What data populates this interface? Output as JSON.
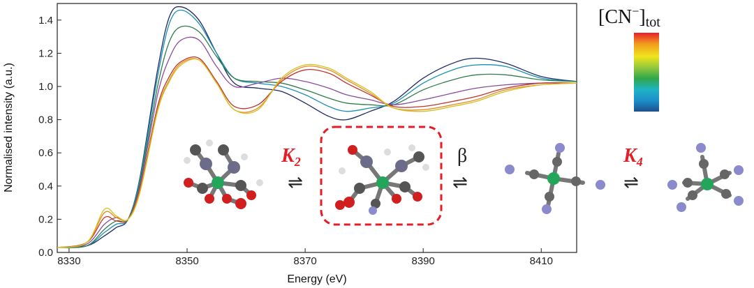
{
  "chart_data": {
    "type": "line",
    "title": "",
    "xlabel": "Energy (eV)",
    "ylabel": "Normalised intensity (a.u.)",
    "xlim": [
      8328,
      8416
    ],
    "ylim": [
      0.0,
      1.5
    ],
    "xticks": [
      8330,
      8350,
      8370,
      8390,
      8410
    ],
    "yticks": [
      0.0,
      0.2,
      0.4,
      0.6,
      0.8,
      1.0,
      1.2,
      1.4
    ],
    "xtick_labels": [
      "8330",
      "8350",
      "8370",
      "8390",
      "8410"
    ],
    "ytick_labels": [
      "0.0",
      "0.2",
      "0.4",
      "0.6",
      "0.8",
      "1.0",
      "1.2",
      "1.4"
    ],
    "grid": false,
    "colorbar": {
      "label_main": "[CN",
      "label_sup": "−",
      "label_close": "]",
      "label_sub": "tot",
      "colors": [
        "#e8202a",
        "#f39a1e",
        "#f0e51c",
        "#8cc63e",
        "#2fa84a",
        "#1fb3c4",
        "#1b8fc9",
        "#1f4f8c"
      ]
    },
    "series": [
      {
        "color": "#1f2a66",
        "x": [
          8328,
          8333,
          8336,
          8338,
          8340,
          8342,
          8345,
          8347,
          8349,
          8352,
          8355,
          8358,
          8362,
          8366,
          8370,
          8374,
          8377,
          8381,
          8385,
          8390,
          8395,
          8399,
          8404,
          8410,
          8416
        ],
        "y": [
          0.03,
          0.04,
          0.1,
          0.15,
          0.2,
          0.45,
          1.1,
          1.42,
          1.48,
          1.4,
          1.2,
          1.02,
          0.99,
          0.97,
          0.9,
          0.82,
          0.8,
          0.85,
          0.91,
          1.05,
          1.14,
          1.17,
          1.14,
          1.06,
          1.03
        ]
      },
      {
        "color": "#1a8fb5",
        "x": [
          8328,
          8333,
          8336,
          8338,
          8340,
          8342,
          8345,
          8347,
          8349,
          8352,
          8355,
          8358,
          8362,
          8366,
          8370,
          8374,
          8377,
          8381,
          8385,
          8390,
          8395,
          8399,
          8404,
          8410,
          8416
        ],
        "y": [
          0.03,
          0.04,
          0.12,
          0.17,
          0.2,
          0.44,
          1.06,
          1.38,
          1.46,
          1.38,
          1.2,
          1.05,
          1.02,
          1.0,
          0.95,
          0.88,
          0.85,
          0.87,
          0.9,
          1.02,
          1.1,
          1.13,
          1.12,
          1.05,
          1.03
        ]
      },
      {
        "color": "#2e7d4a",
        "x": [
          8328,
          8333,
          8336,
          8338,
          8340,
          8342,
          8345,
          8347,
          8349,
          8352,
          8355,
          8358,
          8362,
          8366,
          8370,
          8374,
          8377,
          8381,
          8385,
          8390,
          8395,
          8399,
          8404,
          8410,
          8416
        ],
        "y": [
          0.03,
          0.04,
          0.14,
          0.19,
          0.2,
          0.42,
          1.0,
          1.27,
          1.36,
          1.33,
          1.18,
          1.05,
          1.03,
          1.02,
          0.98,
          0.93,
          0.9,
          0.89,
          0.89,
          0.98,
          1.04,
          1.07,
          1.07,
          1.04,
          1.03
        ]
      },
      {
        "color": "#8a4a9c",
        "x": [
          8328,
          8333,
          8336,
          8338,
          8340,
          8342,
          8345,
          8347,
          8349,
          8352,
          8355,
          8358,
          8362,
          8366,
          8370,
          8374,
          8377,
          8381,
          8385,
          8390,
          8395,
          8399,
          8404,
          8410,
          8416
        ],
        "y": [
          0.03,
          0.05,
          0.17,
          0.21,
          0.2,
          0.4,
          0.95,
          1.17,
          1.28,
          1.28,
          1.12,
          1.0,
          1.02,
          1.05,
          1.03,
          0.99,
          0.95,
          0.92,
          0.89,
          0.92,
          0.96,
          0.99,
          1.01,
          1.02,
          1.02
        ]
      },
      {
        "color": "#c0342a",
        "x": [
          8328,
          8333,
          8336,
          8338,
          8340,
          8342,
          8345,
          8347,
          8349,
          8352,
          8355,
          8358,
          8362,
          8366,
          8370,
          8374,
          8377,
          8381,
          8385,
          8390,
          8395,
          8399,
          8404,
          8410,
          8416
        ],
        "y": [
          0.03,
          0.06,
          0.21,
          0.19,
          0.2,
          0.38,
          0.88,
          1.06,
          1.15,
          1.17,
          1.03,
          0.88,
          0.89,
          1.03,
          1.1,
          1.08,
          1.02,
          0.95,
          0.88,
          0.88,
          0.91,
          0.94,
          0.99,
          1.02,
          1.02
        ]
      },
      {
        "color": "#e88a2a",
        "x": [
          8328,
          8333,
          8336,
          8338,
          8340,
          8342,
          8345,
          8347,
          8349,
          8352,
          8355,
          8358,
          8362,
          8366,
          8370,
          8374,
          8377,
          8381,
          8385,
          8390,
          8395,
          8399,
          8404,
          8410,
          8416
        ],
        "y": [
          0.03,
          0.06,
          0.24,
          0.21,
          0.2,
          0.37,
          0.86,
          1.04,
          1.14,
          1.16,
          1.02,
          0.86,
          0.87,
          1.04,
          1.12,
          1.1,
          1.04,
          0.96,
          0.87,
          0.86,
          0.89,
          0.92,
          0.98,
          1.01,
          1.02
        ]
      },
      {
        "color": "#d4c21a",
        "x": [
          8328,
          8333,
          8336,
          8338,
          8340,
          8342,
          8345,
          8347,
          8349,
          8352,
          8355,
          8358,
          8362,
          8366,
          8370,
          8374,
          8377,
          8381,
          8385,
          8390,
          8395,
          8399,
          8404,
          8410,
          8416
        ],
        "y": [
          0.03,
          0.06,
          0.26,
          0.22,
          0.2,
          0.36,
          0.85,
          1.03,
          1.13,
          1.16,
          1.02,
          0.86,
          0.86,
          1.05,
          1.13,
          1.11,
          1.05,
          0.97,
          0.87,
          0.85,
          0.88,
          0.91,
          0.97,
          1.01,
          1.02
        ]
      }
    ],
    "annotations": {
      "k2": "K",
      "k2_sub": "2",
      "beta": "β",
      "k4": "K",
      "k4_sub": "4",
      "equilibrium_arrow": "⇌",
      "highlight_color": "#e31e24"
    }
  }
}
